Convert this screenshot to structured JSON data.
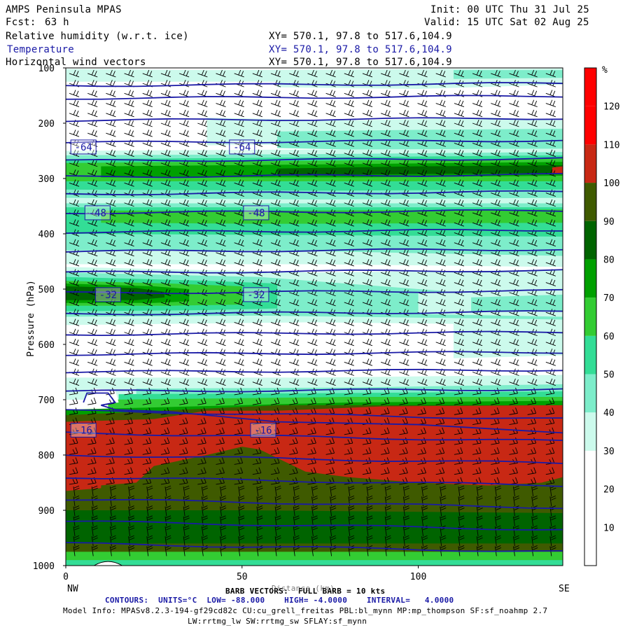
{
  "header": {
    "model_name": "AMPS Peninsula MPAS",
    "fcst_label": "Fcst:",
    "fcst_value": "63 h",
    "init": "Init: 00 UTC Thu 31 Jul 25",
    "valid": "Valid: 15 UTC Sat 02 Aug 25",
    "field1": "Relative humidity (w.r.t. ice)",
    "field2": "Temperature",
    "field3": "Horizontal wind vectors",
    "xy": "XY= 570.1, 97.8 to 517.6,104.9"
  },
  "footer": {
    "barb_line": "BARB VECTORS:  FULL BARB = 10 kts",
    "distance_label": "Distance (km)",
    "contours_line": "CONTOURS:  UNITS=°C  LOW= -88.000    HIGH= -4.0000    INTERVAL=   4.0000",
    "model_info": "Model Info: MPASv8.2.3-194-gf29cd82c CU:cu_grell_freitas PBL:bl_mynn MP:mp_thompson SF:sf_noahmp 2.7",
    "model_info2": "LW:rrtmg_lw SW:rrtmg_sw SFLAY:sf_mynn"
  },
  "colors": {
    "rh_levels": [
      "#ffffff",
      "#ffffff",
      "#ffffff",
      "#ccfaec",
      "#7dedca",
      "#33dd96",
      "#33cc33",
      "#00a000",
      "#006400",
      "#3f5a00",
      "#c82814",
      "#ff0000"
    ],
    "contour": "#1a1aa6"
  },
  "chart_data": {
    "type": "heatmap",
    "title": "Relative humidity (w.r.t. ice) / Temperature / Horizontal wind vectors",
    "ylabel": "Pressure (hPa)",
    "xlabel": "Distance (km)",
    "y_scale": "log (pressure)",
    "ylim": [
      1000,
      100
    ],
    "xlim": [
      0,
      141
    ],
    "x_ticks": [
      0,
      50,
      100
    ],
    "y_ticks": [
      100,
      200,
      300,
      400,
      500,
      600,
      700,
      800,
      900,
      1000
    ],
    "x_end_labels": [
      "NW",
      "SE"
    ],
    "colorbar": {
      "unit": "%",
      "ticks": [
        10,
        20,
        30,
        40,
        50,
        60,
        70,
        80,
        90,
        100,
        110,
        120
      ],
      "range": [
        0,
        130
      ]
    },
    "temperature_contours": {
      "units": "°C",
      "low": -88.0,
      "high": -4.0,
      "interval": 4.0,
      "labels": [
        {
          "value": "-64",
          "x": [
            5,
            50
          ],
          "p": 243
        },
        {
          "value": "-48",
          "x": [
            9,
            54
          ],
          "p": 362
        },
        {
          "value": "-32",
          "x": [
            12,
            54
          ],
          "p": 510
        },
        {
          "value": "-16",
          "x": [
            5,
            56
          ],
          "p": 755
        }
      ]
    },
    "rh_layers_approx": [
      {
        "p_range": [
          100,
          240
        ],
        "rh": "20-50%"
      },
      {
        "p_range": [
          260,
          330
        ],
        "rh": "70-100%"
      },
      {
        "p_range": [
          330,
          460
        ],
        "rh": "30-70%"
      },
      {
        "p_range": [
          470,
          560
        ],
        "rh": "40-100%"
      },
      {
        "p_range": [
          560,
          690
        ],
        "rh": "0-30%"
      },
      {
        "p_range": [
          690,
          860
        ],
        "rh": "80-120%"
      },
      {
        "p_range": [
          860,
          1000
        ],
        "rh": "100-110%"
      }
    ]
  }
}
